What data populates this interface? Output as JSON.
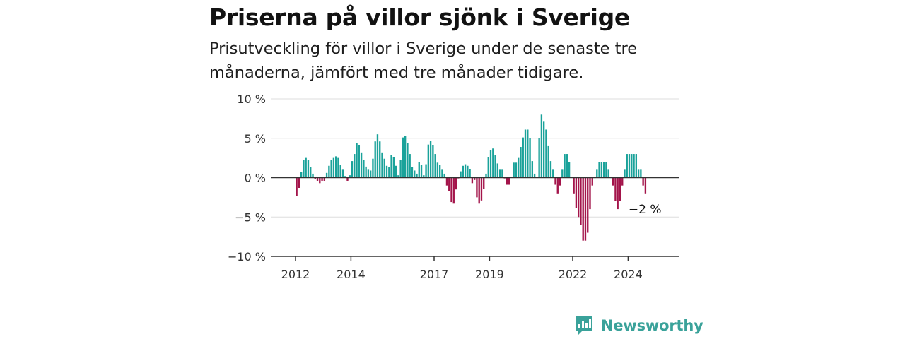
{
  "title": "Priserna på villor sjönk i Sverige",
  "subtitle": "Prisutveckling för villor i Sverige under de senaste tre månaderna, jämfört med tre månader tidigare.",
  "brand": "Newsworthy",
  "colors": {
    "positive": "#1aa29a",
    "negative": "#a3144a",
    "text": "#121212",
    "grid": "#dddddd",
    "brand": "#3aa29a"
  },
  "chart_data": {
    "type": "bar",
    "title": "Priserna på villor sjönk i Sverige",
    "xlabel": "",
    "ylabel": "",
    "ylim": [
      -10,
      10
    ],
    "yticks": [
      -10,
      -5,
      0,
      5,
      10
    ],
    "ytick_labels": [
      "−10 %",
      "−5 %",
      "0 %",
      "5 %",
      "10 %"
    ],
    "xticks": [
      2012,
      2014,
      2017,
      2019,
      2022,
      2024
    ],
    "grid": true,
    "annotation": {
      "text": "−2 %",
      "target": "last value"
    },
    "x_start": "2012-01",
    "frequency": "monthly",
    "values": [
      -2.3,
      -1.3,
      0.7,
      2.2,
      2.5,
      2.2,
      1.3,
      0.5,
      -0.2,
      -0.4,
      -0.7,
      -0.4,
      -0.4,
      0.6,
      1.5,
      2.2,
      2.5,
      2.7,
      2.5,
      1.6,
      1.0,
      0.2,
      -0.4,
      0.3,
      2.1,
      3.0,
      4.4,
      4.1,
      3.2,
      2.2,
      1.4,
      1.0,
      0.9,
      2.4,
      4.6,
      5.5,
      4.6,
      3.2,
      2.4,
      1.5,
      1.3,
      2.9,
      2.6,
      1.5,
      0.3,
      2.2,
      5.1,
      5.3,
      4.4,
      3.0,
      1.3,
      0.9,
      0.5,
      2.0,
      1.6,
      0.3,
      1.7,
      4.2,
      4.7,
      4.1,
      3.0,
      1.9,
      1.6,
      1.0,
      0.5,
      -1.0,
      -1.7,
      -3.1,
      -3.3,
      -1.5,
      -0.1,
      0.8,
      1.5,
      1.7,
      1.5,
      1.1,
      -0.7,
      -0.3,
      -2.5,
      -3.3,
      -2.9,
      -1.4,
      0.5,
      2.6,
      3.5,
      3.7,
      2.9,
      1.8,
      1.0,
      1.0,
      -0.1,
      -0.9,
      -0.9,
      0.1,
      1.9,
      1.9,
      2.5,
      3.9,
      5.1,
      6.1,
      6.1,
      5.0,
      2.1,
      0.5,
      0.1,
      5.0,
      8.0,
      7.1,
      6.1,
      4.0,
      2.1,
      1.0,
      -0.9,
      -2.0,
      -1.0,
      1.0,
      3.0,
      3.0,
      2.0,
      0.1,
      -2.0,
      -3.9,
      -5.0,
      -6.0,
      -8.0,
      -8.0,
      -7.0,
      -4.0,
      -1.0,
      0.0,
      1.0,
      2.0,
      2.0,
      2.0,
      2.0,
      1.0,
      0.0,
      -1.0,
      -3.0,
      -4.0,
      -3.0,
      -1.0,
      1.0,
      3.0,
      3.0,
      3.0,
      3.0,
      3.0,
      1.0,
      1.0,
      -1.0,
      -2.0
    ]
  }
}
